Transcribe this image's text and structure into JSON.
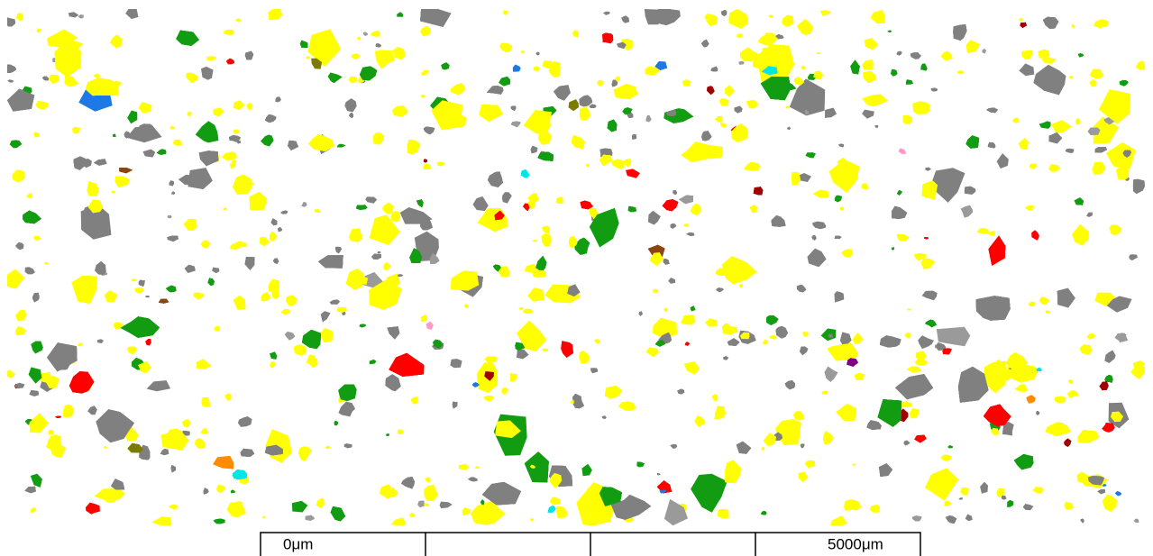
{
  "scale_bar": {
    "start_label": "0μm",
    "end_label": "5000μm"
  }
}
